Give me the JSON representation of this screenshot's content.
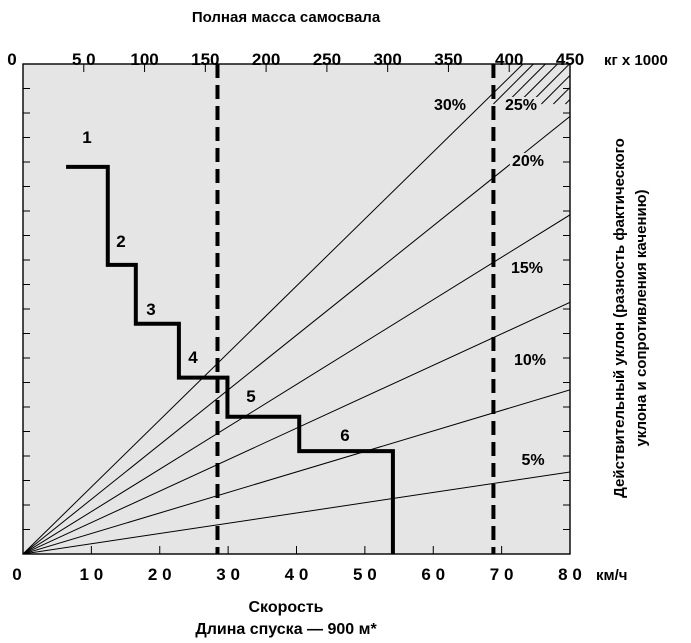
{
  "chart_data": {
    "type": "line",
    "title": "Полная масса самосвала",
    "top_axis": {
      "label": "Полная масса самосвала",
      "unit": "кг х 1000",
      "ticks": [
        "0",
        "5 0",
        "100",
        "150",
        "200",
        "250",
        "300",
        "350",
        "400",
        "450"
      ],
      "range": [
        0,
        450
      ]
    },
    "bottom_axis": {
      "unit": "км/ч",
      "ticks": [
        "0",
        "1 0",
        "2 0",
        "3 0",
        "4 0",
        "5 0",
        "6 0",
        "7 0",
        "8 0"
      ],
      "range": [
        0,
        80
      ],
      "xlabel": "Скорость",
      "subtitle": "Длина спуска — 900 м*"
    },
    "right_axis": {
      "label_line1": "Действительный уклон (разность фактического",
      "label_line2": "уклона и сопротивления качению)"
    },
    "grade_lines": [
      {
        "label": "5%",
        "mass_at_top": 0
      },
      {
        "label": "10%"
      },
      {
        "label": "15%"
      },
      {
        "label": "20%"
      },
      {
        "label": "25%"
      },
      {
        "label": "30%"
      }
    ],
    "grade_slopes": [
      0.15,
      0.3,
      0.46,
      0.62,
      0.8,
      0.98
    ],
    "step_curve": {
      "labels": [
        "1",
        "2",
        "3",
        "4",
        "5",
        "6"
      ],
      "points": [
        [
          6.3,
          0.79
        ],
        [
          12.4,
          0.79
        ],
        [
          12.4,
          0.59
        ],
        [
          16.5,
          0.59
        ],
        [
          16.5,
          0.47
        ],
        [
          22.8,
          0.47
        ],
        [
          22.8,
          0.36
        ],
        [
          29.9,
          0.36
        ],
        [
          29.9,
          0.28
        ],
        [
          40.4,
          0.28
        ],
        [
          40.4,
          0.21
        ],
        [
          54.1,
          0.21
        ],
        [
          54.1,
          0.0
        ]
      ]
    },
    "reference_lines": [
      {
        "axis": "top",
        "value": 160
      },
      {
        "axis": "top",
        "value": 387
      }
    ],
    "y_range": [
      0,
      1
    ],
    "grid": true,
    "plot_background": "#e5e5e5",
    "line_color": "#000000"
  }
}
